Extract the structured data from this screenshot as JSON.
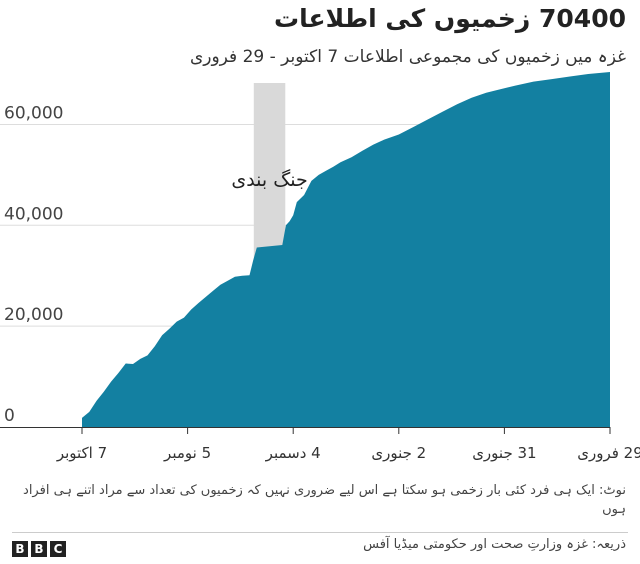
{
  "header": {
    "title": "70400 زخمیوں کی اطلاعات",
    "subtitle": "غزہ میں زخمیوں کی مجموعی اطلاعات 7 اکتوبر - 29 فروری"
  },
  "footer": {
    "note": "نوٹ: ایک ہی فرد کئی بار زخمی ہو سکتا ہے اس لیے ضروری نہیں کہ زخمیوں کی تعداد سے مراد اتنے ہی افراد ہوں",
    "source": "ذریعہ: غزہ وزارتِ صحت اور حکومتی میڈیا آفس",
    "logo": [
      "B",
      "B",
      "C"
    ]
  },
  "chart_data": {
    "type": "area",
    "title": "70400 زخمیوں کی اطلاعات",
    "subtitle": "غزہ میں زخمیوں کی مجموعی اطلاعات 7 اکتوبر - 29 فروری",
    "xlabel": "",
    "ylabel": "",
    "ylim": [
      0,
      70400
    ],
    "grid": true,
    "colors": {
      "area": "#1380A1",
      "band": "#d9d9d9",
      "gridline": "#dddddd",
      "axis": "#333333"
    },
    "x_ticks": [
      {
        "date": "2023-10-07",
        "label": "7 اکتوبر"
      },
      {
        "date": "2023-11-05",
        "label": "5 نومبر"
      },
      {
        "date": "2023-12-04",
        "label": "4 دسمبر"
      },
      {
        "date": "2024-01-02",
        "label": "2 جنوری"
      },
      {
        "date": "2024-01-31",
        "label": "31 جنوری"
      },
      {
        "date": "2024-02-29",
        "label": "29 فروری"
      }
    ],
    "y_ticks": [
      {
        "value": 0,
        "label": "0"
      },
      {
        "value": 20000,
        "label": "20,000"
      },
      {
        "value": 40000,
        "label": "40,000"
      },
      {
        "value": 60000,
        "label": "60,000"
      }
    ],
    "annotation": {
      "label": "جنگ بندی",
      "start": "2023-11-24",
      "end": "2023-12-01"
    },
    "x": [
      "2023-10-07",
      "2023-10-09",
      "2023-10-11",
      "2023-10-13",
      "2023-10-15",
      "2023-10-17",
      "2023-10-19",
      "2023-10-21",
      "2023-10-23",
      "2023-10-25",
      "2023-10-27",
      "2023-10-29",
      "2023-10-31",
      "2023-11-02",
      "2023-11-04",
      "2023-11-06",
      "2023-11-08",
      "2023-11-10",
      "2023-11-12",
      "2023-11-14",
      "2023-11-16",
      "2023-11-18",
      "2023-11-20",
      "2023-11-22",
      "2023-11-23",
      "2023-11-24",
      "2023-12-01",
      "2023-12-02",
      "2023-12-03",
      "2023-12-04",
      "2023-12-05",
      "2023-12-07",
      "2023-12-09",
      "2023-12-11",
      "2023-12-13",
      "2023-12-15",
      "2023-12-17",
      "2023-12-20",
      "2023-12-23",
      "2023-12-26",
      "2023-12-29",
      "2024-01-02",
      "2024-01-06",
      "2024-01-10",
      "2024-01-14",
      "2024-01-18",
      "2024-01-22",
      "2024-01-26",
      "2024-01-30",
      "2024-02-03",
      "2024-02-08",
      "2024-02-13",
      "2024-02-18",
      "2024-02-23",
      "2024-02-29"
    ],
    "series": [
      {
        "values": [
          1800,
          3000,
          5200,
          7000,
          9000,
          10700,
          12600,
          12500,
          13500,
          14200,
          16000,
          18200,
          19500,
          20900,
          21700,
          23300,
          24600,
          25800,
          27000,
          28200,
          29000,
          29800,
          30000,
          30100,
          33000,
          35600,
          36100,
          40000,
          40800,
          42000,
          44600,
          46000,
          48800,
          50000,
          50800,
          51600,
          52500,
          53500,
          54800,
          56000,
          57000,
          58000,
          59500,
          61000,
          62500,
          64000,
          65300,
          66300,
          67000,
          67700,
          68500,
          69000,
          69500,
          70000,
          70400
        ]
      }
    ]
  }
}
